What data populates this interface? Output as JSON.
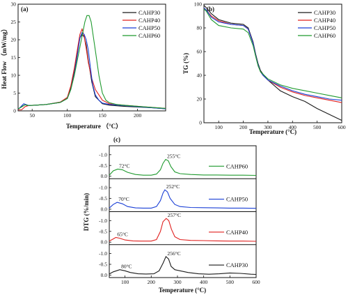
{
  "colors": {
    "CAHP30": "#1a1a1a",
    "CAHP40": "#e0201f",
    "CAHP50": "#1a3fd6",
    "CAHP60": "#1f9a2e"
  },
  "chart_data": [
    {
      "panel": "(a)",
      "type": "line",
      "xlabel": "Temperature （°C）",
      "ylabel": "Heat Flow （mW/mg）",
      "xlim": [
        30,
        240
      ],
      "ylim": [
        0,
        30
      ],
      "xticks": [
        50,
        100,
        150,
        200
      ],
      "yticks": [
        0,
        5,
        10,
        15,
        20,
        25,
        30
      ],
      "legend": "top-right",
      "series": [
        {
          "name": "CAHP30",
          "x": [
            30,
            35,
            40,
            45,
            55,
            70,
            90,
            100,
            105,
            110,
            115,
            118,
            121,
            124,
            127,
            130,
            135,
            140,
            150,
            160,
            180,
            200,
            220,
            240
          ],
          "y": [
            0.5,
            1.2,
            1.7,
            1.5,
            1.6,
            1.8,
            2.4,
            3.5,
            6.5,
            11.5,
            17.5,
            20.5,
            21.5,
            20.8,
            18.5,
            14,
            8,
            4,
            2,
            1.6,
            1.3,
            1.1,
            0.9,
            0.6
          ]
        },
        {
          "name": "CAHP40",
          "x": [
            30,
            35,
            40,
            45,
            55,
            70,
            90,
            100,
            105,
            110,
            115,
            118,
            121,
            124,
            127,
            130,
            135,
            140,
            145,
            150,
            160,
            180,
            200,
            220,
            240
          ],
          "y": [
            0.3,
            0.3,
            1.2,
            1.5,
            1.6,
            1.8,
            2.5,
            3.8,
            7,
            12,
            18,
            21.5,
            23,
            21,
            17.5,
            13.5,
            9,
            6,
            4.5,
            3,
            2,
            1.6,
            1.3,
            1,
            0.7
          ]
        },
        {
          "name": "CAHP50",
          "x": [
            30,
            33,
            38,
            45,
            55,
            70,
            90,
            100,
            105,
            110,
            115,
            118,
            121,
            124,
            127,
            130,
            133,
            136,
            140,
            145,
            150,
            160,
            180,
            200,
            220,
            240
          ],
          "y": [
            0.4,
            1,
            2,
            1.5,
            1.6,
            1.8,
            2.4,
            3.5,
            6,
            10.5,
            16.5,
            20.5,
            22,
            21.5,
            20,
            17,
            12,
            7.5,
            4.5,
            3,
            2.2,
            1.8,
            1.5,
            1.2,
            0.9,
            0.6
          ]
        },
        {
          "name": "CAHP60",
          "x": [
            30,
            35,
            40,
            45,
            55,
            70,
            90,
            100,
            105,
            110,
            115,
            120,
            125,
            128,
            131,
            134,
            137,
            140,
            145,
            150,
            155,
            160,
            170,
            180,
            200,
            220,
            240
          ],
          "y": [
            0.5,
            1.1,
            1.7,
            1.5,
            1.6,
            1.8,
            2.4,
            3.5,
            6,
            10,
            15,
            20,
            25,
            26.8,
            26.8,
            25,
            21,
            17,
            10,
            5,
            3,
            2.3,
            1.8,
            1.6,
            1.3,
            1,
            0.7
          ]
        }
      ]
    },
    {
      "panel": "(b)",
      "type": "line",
      "xlabel": "Temperature (°C)",
      "ylabel": "TG (%)",
      "xlim": [
        40,
        600
      ],
      "ylim": [
        0,
        100
      ],
      "xticks": [
        100,
        200,
        300,
        400,
        500,
        600
      ],
      "yticks": [
        0,
        20,
        40,
        60,
        80,
        100
      ],
      "legend": "top-right",
      "series": [
        {
          "name": "CAHP30",
          "x": [
            40,
            50,
            70,
            100,
            150,
            200,
            220,
            240,
            250,
            260,
            270,
            280,
            300,
            350,
            400,
            450,
            500,
            550,
            600
          ],
          "y": [
            99,
            97,
            92,
            87,
            84,
            83,
            80,
            68,
            58,
            50,
            44,
            41,
            36,
            27,
            22,
            18,
            12,
            7,
            2
          ]
        },
        {
          "name": "CAHP40",
          "x": [
            40,
            50,
            70,
            100,
            150,
            200,
            220,
            240,
            250,
            260,
            270,
            280,
            300,
            350,
            400,
            450,
            500,
            550,
            600
          ],
          "y": [
            97,
            95,
            90,
            86,
            83,
            82,
            79,
            67,
            57,
            49,
            43,
            40,
            36,
            30,
            26,
            23,
            21,
            19,
            17
          ]
        },
        {
          "name": "CAHP50",
          "x": [
            40,
            50,
            70,
            100,
            150,
            200,
            220,
            240,
            250,
            260,
            270,
            280,
            300,
            350,
            400,
            450,
            500,
            550,
            600
          ],
          "y": [
            97,
            95,
            89,
            85,
            83,
            82,
            79,
            67,
            57,
            49,
            43,
            40,
            36,
            31,
            27,
            24,
            22,
            20,
            19
          ]
        },
        {
          "name": "CAHP60",
          "x": [
            40,
            50,
            70,
            100,
            150,
            200,
            220,
            240,
            250,
            260,
            270,
            280,
            300,
            350,
            400,
            450,
            500,
            550,
            600
          ],
          "y": [
            96,
            94,
            87,
            82,
            80,
            79,
            76,
            65,
            56,
            48,
            43,
            41,
            37,
            32,
            29,
            27,
            25,
            23,
            21
          ]
        }
      ]
    },
    {
      "panel": "(c)",
      "type": "line",
      "xlabel": "Temperature (°C)",
      "ylabel": "DTG (%/min)",
      "xlim": [
        40,
        600
      ],
      "xticks": [
        100,
        200,
        300,
        400,
        500,
        600
      ],
      "subplots": [
        {
          "name": "CAHP60",
          "ylim": [
            0.05,
            -1.35
          ],
          "yticks": [
            "-1.0",
            "-0.5",
            "0.0"
          ],
          "ytick_values": [
            -1.0,
            -0.5,
            0.0
          ],
          "annotations": [
            {
              "text": "72°C",
              "x": 72,
              "y": -0.33
            },
            {
              "text": "255°C",
              "x": 255,
              "y": -0.78
            }
          ],
          "x": [
            40,
            55,
            72,
            90,
            110,
            140,
            170,
            200,
            220,
            235,
            245,
            255,
            265,
            275,
            290,
            310,
            350,
            400,
            450,
            500,
            550,
            600
          ],
          "y": [
            -0.05,
            -0.25,
            -0.33,
            -0.3,
            -0.18,
            -0.08,
            -0.05,
            -0.05,
            -0.1,
            -0.3,
            -0.6,
            -0.78,
            -0.72,
            -0.45,
            -0.2,
            -0.12,
            -0.08,
            -0.06,
            -0.06,
            -0.05,
            -0.05,
            -0.04
          ]
        },
        {
          "name": "CAHP50",
          "ylim": [
            0.05,
            -1.35
          ],
          "yticks": [
            "-1.0",
            "-0.5",
            "0.0"
          ],
          "ytick_values": [
            -1.0,
            -0.5,
            0.0
          ],
          "annotations": [
            {
              "text": "70°C",
              "x": 70,
              "y": -0.32
            },
            {
              "text": "252°C",
              "x": 252,
              "y": -0.9
            }
          ],
          "x": [
            40,
            55,
            70,
            90,
            110,
            140,
            170,
            200,
            220,
            235,
            245,
            252,
            262,
            272,
            290,
            310,
            350,
            400,
            450,
            500,
            550,
            600
          ],
          "y": [
            -0.05,
            -0.22,
            -0.32,
            -0.25,
            -0.12,
            -0.06,
            -0.05,
            -0.05,
            -0.12,
            -0.4,
            -0.75,
            -0.9,
            -0.8,
            -0.5,
            -0.22,
            -0.12,
            -0.08,
            -0.07,
            -0.06,
            -0.05,
            -0.05,
            -0.04
          ]
        },
        {
          "name": "CAHP40",
          "ylim": [
            0.05,
            -1.35
          ],
          "yticks": [
            "-1.0",
            "-0.5",
            "0.0"
          ],
          "ytick_values": [
            -1.0,
            -0.5,
            0.0
          ],
          "annotations": [
            {
              "text": "65°C",
              "x": 65,
              "y": -0.22
            },
            {
              "text": "257°C",
              "x": 257,
              "y": -1.1
            }
          ],
          "x": [
            40,
            55,
            65,
            80,
            100,
            130,
            160,
            200,
            220,
            235,
            245,
            257,
            267,
            277,
            290,
            310,
            350,
            400,
            450,
            500,
            550,
            600
          ],
          "y": [
            -0.05,
            -0.15,
            -0.22,
            -0.18,
            -0.1,
            -0.06,
            -0.05,
            -0.05,
            -0.12,
            -0.5,
            -0.95,
            -1.1,
            -1.0,
            -0.6,
            -0.25,
            -0.12,
            -0.08,
            -0.07,
            -0.06,
            -0.05,
            -0.05,
            -0.04
          ]
        },
        {
          "name": "CAHP30",
          "ylim": [
            0.05,
            -1.35
          ],
          "yticks": [
            "-1.0",
            "-0.5",
            "0.0"
          ],
          "ytick_values": [
            -1.0,
            -0.5,
            0.0
          ],
          "annotations": [
            {
              "text": "80°C",
              "x": 80,
              "y": -0.25
            },
            {
              "text": "256°C",
              "x": 256,
              "y": -0.86
            }
          ],
          "x": [
            40,
            55,
            80,
            100,
            120,
            150,
            180,
            210,
            230,
            245,
            256,
            266,
            276,
            290,
            310,
            340,
            380,
            420,
            460,
            500,
            540,
            580,
            600
          ],
          "y": [
            -0.05,
            -0.15,
            -0.25,
            -0.2,
            -0.12,
            -0.06,
            -0.05,
            -0.06,
            -0.2,
            -0.55,
            -0.86,
            -0.75,
            -0.4,
            -0.25,
            -0.2,
            -0.12,
            -0.06,
            -0.04,
            -0.06,
            -0.1,
            -0.08,
            -0.04,
            -0.03
          ]
        }
      ]
    }
  ]
}
